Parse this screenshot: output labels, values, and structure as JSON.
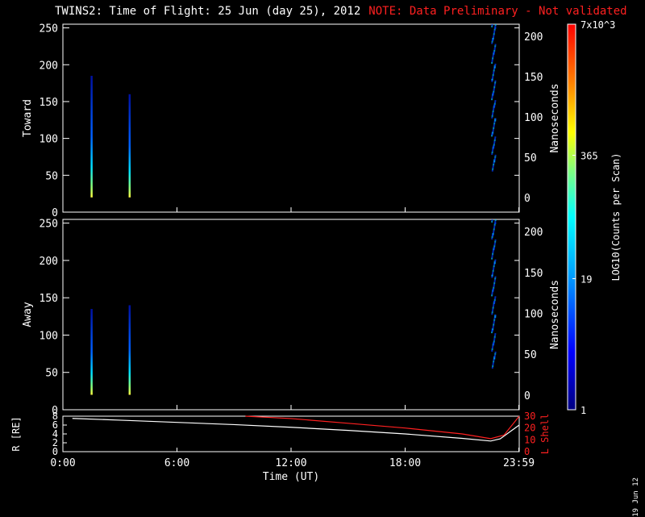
{
  "title": {
    "main": "TWINS2: Time of Flight: 25 Jun (day  25), 2012",
    "note": "NOTE: Data Preliminary - Not validated"
  },
  "side_stamp": "19 Jun 12",
  "colors": {
    "background": "#000000",
    "axes": "#ffffff",
    "note": "#ff2020",
    "lshell": "#ff2020",
    "radius_line": "#ffffff"
  },
  "chart_data": [
    {
      "type": "heatmap",
      "panel": "Toward",
      "ylabel": "Toward",
      "ylim": [
        0,
        255
      ],
      "y_ticks": [
        0,
        50,
        100,
        150,
        200,
        250
      ],
      "right_axis": {
        "label": "Nanoseconds",
        "ticks": [
          0,
          50,
          100,
          150,
          200
        ],
        "ylim": [
          -18,
          215
        ]
      },
      "x_ticks": [
        "0:00",
        "6:00",
        "12:00",
        "18:00",
        "23:59"
      ],
      "xlim_hours": [
        0,
        24
      ],
      "streaks": [
        {
          "time_hours": 1.5,
          "count_top": 185
        },
        {
          "time_hours": 3.5,
          "count_top": 160
        }
      ],
      "end_block_hours": [
        22.5,
        24
      ]
    },
    {
      "type": "heatmap",
      "panel": "Away",
      "ylabel": "Away",
      "ylim": [
        0,
        255
      ],
      "y_ticks": [
        0,
        50,
        100,
        150,
        200,
        250
      ],
      "right_axis": {
        "label": "Nanoseconds",
        "ticks": [
          0,
          50,
          100,
          150,
          200
        ],
        "ylim": [
          -18,
          215
        ]
      },
      "x_ticks": [
        "0:00",
        "6:00",
        "12:00",
        "18:00",
        "23:59"
      ],
      "xlim_hours": [
        0,
        24
      ],
      "streaks": [
        {
          "time_hours": 1.5,
          "count_top": 135
        },
        {
          "time_hours": 3.5,
          "count_top": 140
        }
      ],
      "end_block_hours": [
        22.5,
        24
      ]
    },
    {
      "type": "line",
      "panel": "orbit",
      "ylabel": "R [RE]",
      "ylim": [
        0,
        8
      ],
      "y_ticks": [
        0,
        2,
        4,
        6,
        8
      ],
      "right_axis": {
        "label": "L Shell",
        "ticks": [
          0,
          10,
          20,
          30
        ],
        "ylim": [
          0,
          30
        ]
      },
      "xlabel": "Time (UT)",
      "x_ticks": [
        "0:00",
        "6:00",
        "12:00",
        "18:00",
        "23:59"
      ],
      "xlim_hours": [
        0,
        24
      ],
      "series": [
        {
          "name": "R [RE]",
          "x": [
            0.5,
            3,
            6,
            9,
            12,
            15,
            18,
            21,
            22.5,
            23,
            24
          ],
          "y": [
            7.5,
            7.1,
            6.6,
            6.1,
            5.5,
            4.8,
            4.0,
            3.0,
            2.4,
            2.9,
            6.0
          ]
        },
        {
          "name": "L Shell",
          "x": [
            9.6,
            12,
            15,
            18,
            21,
            22.5,
            23.2,
            24
          ],
          "y": [
            30,
            28,
            24,
            20,
            15,
            11,
            14,
            30
          ]
        }
      ]
    },
    {
      "type": "colorbar",
      "label": "LOG10(Counts per Scan)",
      "tick_labels": [
        "1",
        "19",
        "365",
        "7x10^3"
      ],
      "colors": [
        "#000080",
        "#0000ff",
        "#00a0ff",
        "#00ffff",
        "#80ff80",
        "#ffff00",
        "#ff8000",
        "#ff0000"
      ]
    }
  ]
}
